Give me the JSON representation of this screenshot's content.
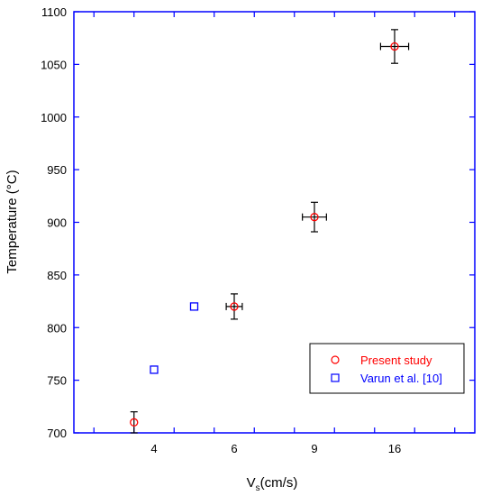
{
  "chart_data": {
    "type": "scatter",
    "title": "",
    "xlabel": "V",
    "xlabel_sub": "s",
    "xlabel_suffix": "(cm/s)",
    "ylabel": "Temperature (°C)",
    "ylim": [
      700,
      1100
    ],
    "yticks": [
      700,
      750,
      800,
      850,
      900,
      950,
      1000,
      1050,
      1100
    ],
    "x_categories": [
      "",
      "4",
      "",
      "6",
      "",
      "9",
      "",
      "16",
      ""
    ],
    "grid": false,
    "legend_position": "bottom-right",
    "series": [
      {
        "name": "Present study",
        "color": "#ff0000",
        "marker": "circle",
        "points": [
          {
            "x": 0.5,
            "y": 710,
            "yerr": 10,
            "xerr": 0
          },
          {
            "x": 3,
            "y": 820,
            "yerr": 12,
            "xerr": 0.2
          },
          {
            "x": 5,
            "y": 905,
            "yerr": 14,
            "xerr": 0.3
          },
          {
            "x": 7,
            "y": 1067,
            "yerr": 16,
            "xerr": 0.35
          }
        ]
      },
      {
        "name": "Varun et al. [10]",
        "color": "#0000ff",
        "marker": "square",
        "points": [
          {
            "x": 1,
            "y": 760
          },
          {
            "x": 2,
            "y": 820
          }
        ]
      }
    ]
  }
}
